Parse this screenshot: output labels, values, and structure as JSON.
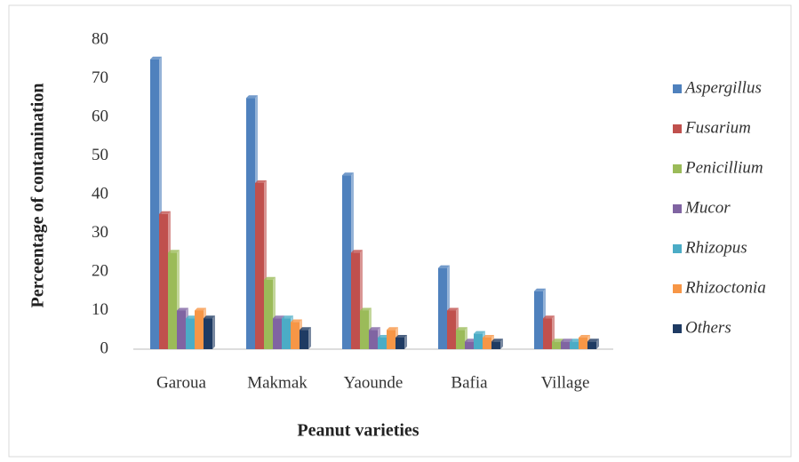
{
  "chart_data": {
    "type": "bar",
    "x_label": "Peanut varieties",
    "y_label": "Perceentage of contamination",
    "categories": [
      "Garoua",
      "Makmak",
      "Yaounde",
      "Bafia",
      "Village"
    ],
    "series": [
      {
        "name": "Aspergillus",
        "color": "#4f81bd",
        "values": [
          75,
          65,
          45,
          21,
          15
        ]
      },
      {
        "name": "Fusarium",
        "color": "#c0504d",
        "values": [
          35,
          43,
          25,
          10,
          8
        ]
      },
      {
        "name": "Penicillium",
        "color": "#9bbb59",
        "values": [
          25,
          18,
          10,
          5,
          2
        ]
      },
      {
        "name": "Mucor",
        "color": "#8064a2",
        "values": [
          10,
          8,
          5,
          2,
          2
        ]
      },
      {
        "name": "Rhizopus",
        "color": "#4bacc6",
        "values": [
          8,
          8,
          3,
          4,
          2
        ]
      },
      {
        "name": "Rhizoctonia",
        "color": "#f79646",
        "values": [
          10,
          7,
          5,
          3,
          3
        ]
      },
      {
        "name": "Others",
        "color": "#1f3b63",
        "values": [
          8,
          5,
          3,
          2,
          2
        ]
      }
    ],
    "ylim": [
      0,
      80
    ],
    "yticks": [
      0,
      10,
      20,
      30,
      40,
      50,
      60,
      70,
      80
    ],
    "legend": "right"
  }
}
